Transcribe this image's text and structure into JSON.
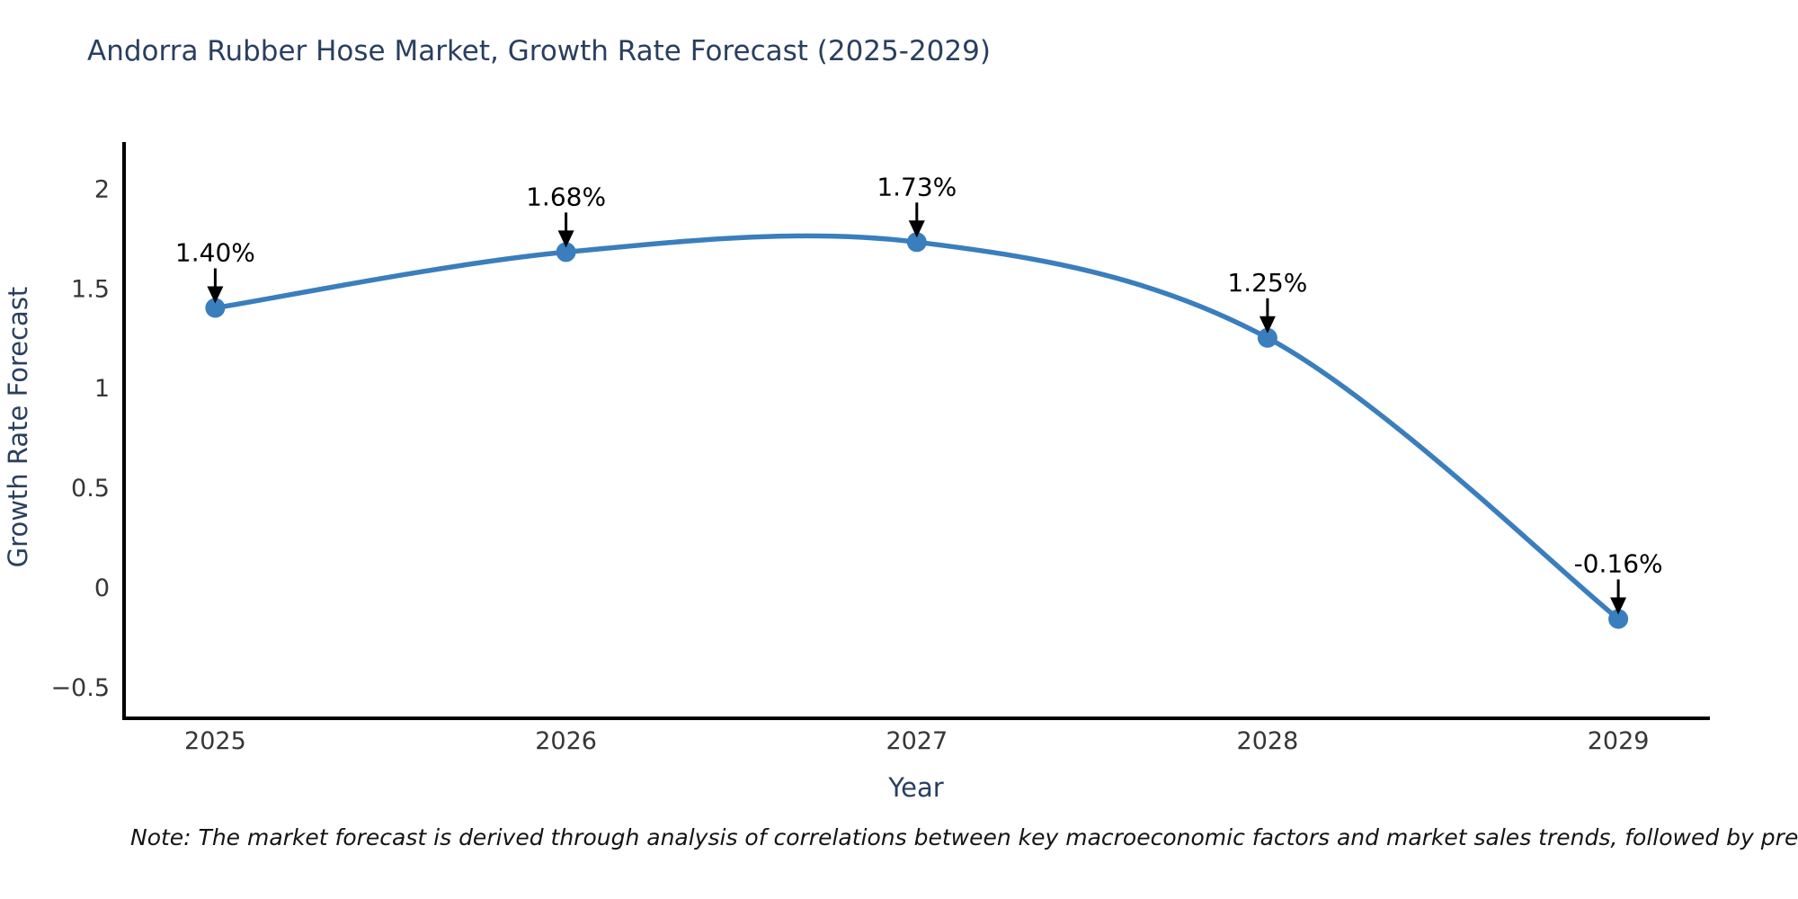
{
  "header": {
    "title": "Andorra Rubber Hose Market, Growth Rate Forecast (2025-2029)"
  },
  "chart_data": {
    "type": "line",
    "title": "Andorra Rubber Hose Market, Growth Rate Forecast (2025-2029)",
    "xlabel": "Year",
    "ylabel": "Growth Rate Forecast",
    "x": [
      2025,
      2026,
      2027,
      2028,
      2029
    ],
    "values": [
      1.4,
      1.68,
      1.73,
      1.25,
      -0.16
    ],
    "point_labels": [
      "1.40%",
      "1.68%",
      "1.73%",
      "1.25%",
      "-0.16%"
    ],
    "x_tick_labels": [
      "2025",
      "2026",
      "2027",
      "2028",
      "2029"
    ],
    "y_ticks": [
      2,
      1.5,
      1,
      0.5,
      0,
      -0.5
    ],
    "y_tick_labels": [
      "2",
      "1.5",
      "1",
      "0.5",
      "0",
      "−0.5"
    ],
    "xlim": [
      2024.74,
      2029.256
    ],
    "ylim": [
      -0.663,
      2.223
    ],
    "grid": false,
    "legend": null,
    "smooth": true,
    "line_color": "#3a7ebd",
    "marker_color": "#3a7ebd",
    "annotation_color": "#000000"
  },
  "note": {
    "text": "Note: The market forecast is derived through analysis of correlations between key macroeconomic factors and market sales trends, followed by predictive modeling to project future sal"
  },
  "colors": {
    "background": "#ffffff",
    "title": "#2a3f5f",
    "tick": "#363636",
    "axis": "#000000"
  }
}
